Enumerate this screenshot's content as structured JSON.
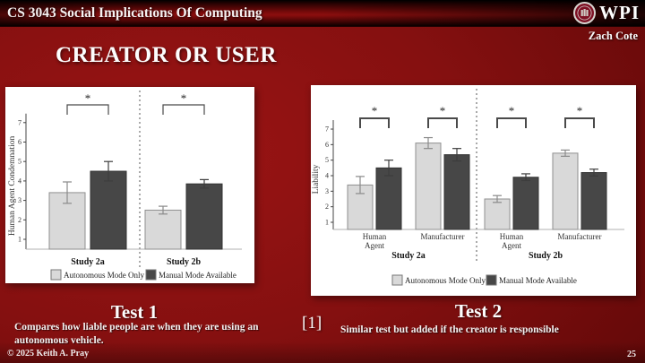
{
  "header": {
    "course_title": "CS 3043 Social Implications Of Computing",
    "logo_text": "WPI",
    "author": "Zach Cote"
  },
  "slide": {
    "title": "CREATOR OR USER",
    "citation_marker": "[1]",
    "footer_left": "© 2025 Keith A. Pray",
    "page_number": "25"
  },
  "test1": {
    "heading": "Test 1",
    "description": "Compares how liable people are when they are using an autonomous vehicle."
  },
  "test2": {
    "heading": "Test 2",
    "description": "Similar test but added if the creator is responsible"
  },
  "colors": {
    "slide_background": "#851010",
    "panel_background": "#ffffff",
    "bar_light": "#d9d9d9",
    "bar_dark": "#474747",
    "text_on_slide": "#ffffff"
  },
  "chart_data": [
    {
      "type": "bar",
      "title": "",
      "ylabel": "Human Agent Condemnation",
      "ylim": [
        1,
        7
      ],
      "yticks": [
        1,
        2,
        3,
        4,
        5,
        6,
        7
      ],
      "group_labels": [
        "Study 2a",
        "Study 2b"
      ],
      "series": [
        {
          "name": "Autonomous Mode Only",
          "color": "#d9d9d9",
          "border": "#8f8f8f",
          "error_color": "#8a8a8a",
          "values": [
            3.4,
            2.5
          ],
          "errors": [
            0.55,
            0.2
          ]
        },
        {
          "name": "Manual Mode Available",
          "color": "#474747",
          "border": "#333333",
          "error_color": "#3d3d3d",
          "values": [
            4.5,
            3.85
          ],
          "errors": [
            0.5,
            0.22
          ]
        }
      ],
      "significance": [
        "*",
        "*"
      ],
      "legend_position": "bottom",
      "grid": false
    },
    {
      "type": "bar",
      "title": "",
      "ylabel": "Liability",
      "ylim": [
        1,
        7
      ],
      "yticks": [
        1,
        2,
        3,
        4,
        5,
        6,
        7
      ],
      "categories": [
        "Human Agent",
        "Manufacturer",
        "Human Agent",
        "Manufacturer"
      ],
      "group_labels": [
        "Study 2a",
        "Study 2b"
      ],
      "series": [
        {
          "name": "Autonomous Mode Only",
          "color": "#d9d9d9",
          "border": "#8f8f8f",
          "error_color": "#8a8a8a",
          "values": [
            3.4,
            6.1,
            2.5,
            5.45
          ],
          "errors": [
            0.55,
            0.35,
            0.22,
            0.2
          ]
        },
        {
          "name": "Manual Mode Available",
          "color": "#474747",
          "border": "#333333",
          "error_color": "#3d3d3d",
          "values": [
            4.5,
            5.35,
            3.9,
            4.2
          ],
          "errors": [
            0.5,
            0.4,
            0.22,
            0.22
          ]
        }
      ],
      "significance": [
        "*",
        "*",
        "*",
        "*"
      ],
      "legend_position": "bottom",
      "grid": false
    }
  ]
}
